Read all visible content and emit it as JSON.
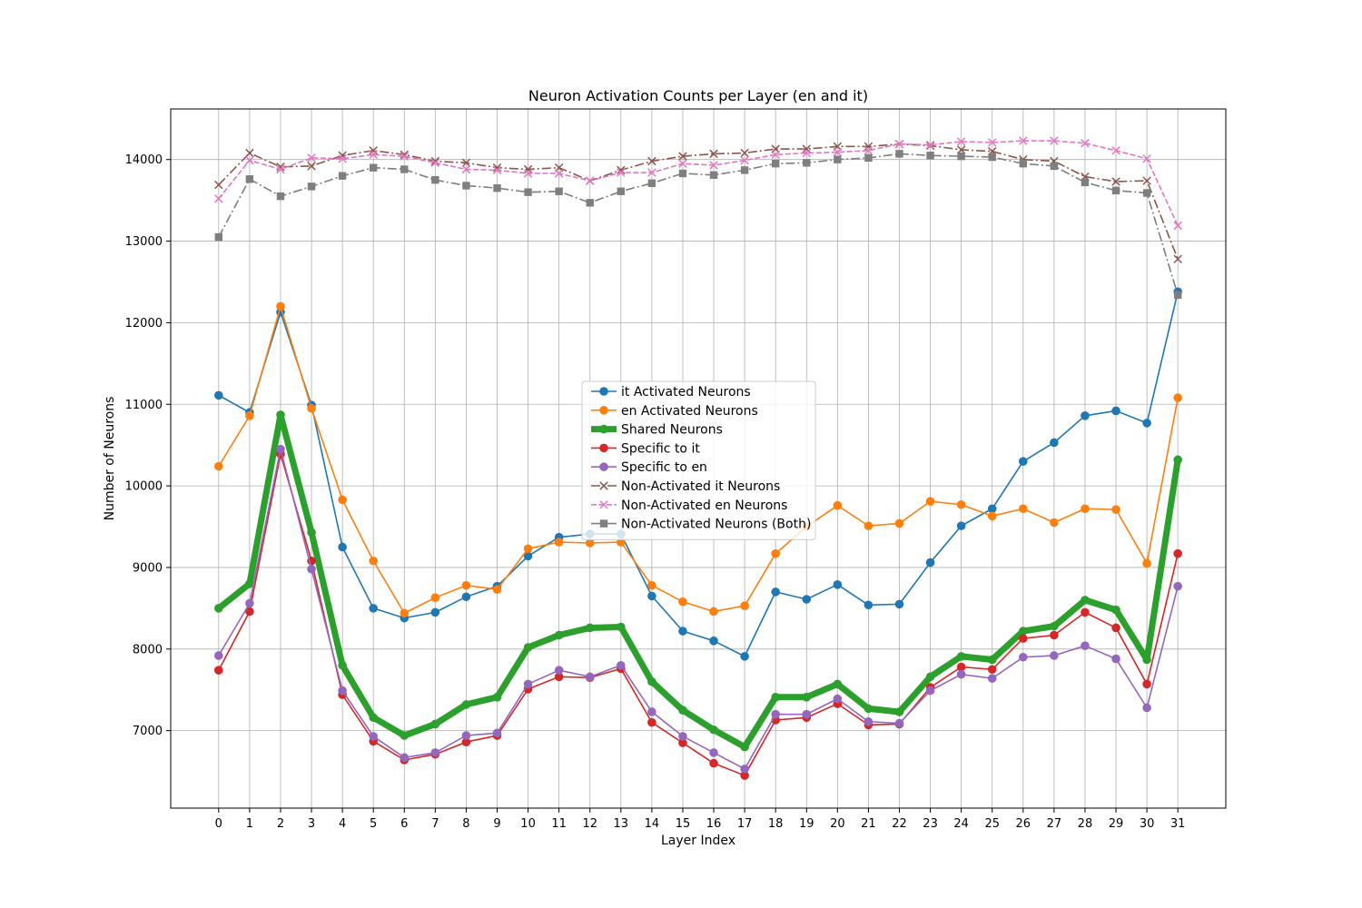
{
  "chart_data": {
    "type": "line",
    "title": "Neuron Activation Counts per Layer (en and it)",
    "xlabel": "Layer Index",
    "ylabel": "Number of Neurons",
    "x": [
      0,
      1,
      2,
      3,
      4,
      5,
      6,
      7,
      8,
      9,
      10,
      11,
      12,
      13,
      14,
      15,
      16,
      17,
      18,
      19,
      20,
      21,
      22,
      23,
      24,
      25,
      26,
      27,
      28,
      29,
      30,
      31
    ],
    "xlim": [
      -1.55,
      32.55
    ],
    "ylim": [
      6050,
      14620
    ],
    "yticks": [
      7000,
      8000,
      9000,
      10000,
      11000,
      12000,
      13000,
      14000
    ],
    "grid": true,
    "legend_position": "center",
    "series": [
      {
        "name": "it Activated Neurons",
        "color": "#1f77b4",
        "marker": "circle",
        "linestyle": "solid",
        "linewidth": "normal",
        "values": [
          11110,
          10900,
          12130,
          10990,
          9250,
          8500,
          8380,
          8450,
          8640,
          8770,
          9140,
          9370,
          9410,
          9410,
          8650,
          8220,
          8100,
          7910,
          8700,
          8610,
          8790,
          8540,
          8550,
          9060,
          9510,
          9720,
          10300,
          10530,
          10860,
          10920,
          10770,
          12380
        ]
      },
      {
        "name": "en Activated Neurons",
        "color": "#ff7f0e",
        "marker": "circle",
        "linestyle": "solid",
        "linewidth": "normal",
        "values": [
          10240,
          10860,
          12200,
          10950,
          9830,
          9080,
          8440,
          8630,
          8780,
          8730,
          9230,
          9310,
          9300,
          9310,
          8780,
          8580,
          8460,
          8530,
          9170,
          9500,
          9760,
          9510,
          9540,
          9810,
          9770,
          9630,
          9720,
          9550,
          9720,
          9710,
          9050,
          11080
        ]
      },
      {
        "name": "Shared Neurons",
        "color": "#2ca02c",
        "marker": "circle",
        "linestyle": "solid",
        "linewidth": "thick",
        "values": [
          8500,
          8800,
          10870,
          9430,
          7800,
          7160,
          6940,
          7080,
          7320,
          7410,
          8020,
          8170,
          8260,
          8270,
          7600,
          7250,
          7010,
          6800,
          7410,
          7410,
          7570,
          7270,
          7230,
          7660,
          7910,
          7870,
          8220,
          8280,
          8600,
          8480,
          7870,
          10320
        ]
      },
      {
        "name": "Specific to it",
        "color": "#d62728",
        "marker": "circle",
        "linestyle": "solid",
        "linewidth": "normal",
        "values": [
          7740,
          8460,
          10390,
          9080,
          7440,
          6870,
          6640,
          6710,
          6860,
          6940,
          7510,
          7660,
          7650,
          7760,
          7100,
          6850,
          6600,
          6450,
          7130,
          7160,
          7330,
          7070,
          7080,
          7530,
          7780,
          7750,
          8130,
          8170,
          8450,
          8260,
          7570,
          9170
        ]
      },
      {
        "name": "Specific to en",
        "color": "#9467bd",
        "marker": "circle",
        "linestyle": "solid",
        "linewidth": "normal",
        "values": [
          7920,
          8560,
          10450,
          8980,
          7490,
          6930,
          6670,
          6730,
          6940,
          6970,
          7570,
          7740,
          7660,
          7800,
          7230,
          6930,
          6730,
          6530,
          7200,
          7200,
          7390,
          7110,
          7090,
          7490,
          7690,
          7640,
          7900,
          7920,
          8040,
          7880,
          7280,
          8770
        ]
      },
      {
        "name": "Non-Activated it Neurons",
        "color": "#8c564b",
        "marker": "x",
        "linestyle": "dashdot",
        "linewidth": "normal",
        "values": [
          13690,
          14080,
          13910,
          13920,
          14050,
          14110,
          14060,
          13980,
          13960,
          13900,
          13880,
          13900,
          13740,
          13870,
          13980,
          14040,
          14070,
          14080,
          14130,
          14130,
          14160,
          14160,
          14190,
          14170,
          14120,
          14100,
          14000,
          13980,
          13790,
          13730,
          13740,
          12780
        ]
      },
      {
        "name": "Non-Activated en Neurons",
        "color": "#e377c2",
        "marker": "x",
        "linestyle": "dashed",
        "linewidth": "normal",
        "values": [
          13520,
          13990,
          13880,
          14020,
          14010,
          14060,
          14040,
          13960,
          13880,
          13870,
          13830,
          13830,
          13740,
          13840,
          13840,
          13950,
          13930,
          13990,
          14060,
          14080,
          14090,
          14110,
          14190,
          14180,
          14220,
          14210,
          14230,
          14230,
          14200,
          14110,
          14010,
          13190
        ]
      },
      {
        "name": "Non-Activated Neurons (Both)",
        "color": "#7f7f7f",
        "marker": "square",
        "linestyle": "dashdot",
        "linewidth": "normal",
        "values": [
          13050,
          13760,
          13550,
          13670,
          13800,
          13900,
          13880,
          13750,
          13680,
          13650,
          13600,
          13610,
          13470,
          13610,
          13710,
          13830,
          13810,
          13870,
          13950,
          13960,
          14000,
          14020,
          14070,
          14050,
          14040,
          14030,
          13950,
          13920,
          13720,
          13620,
          13590,
          12340
        ]
      }
    ]
  }
}
